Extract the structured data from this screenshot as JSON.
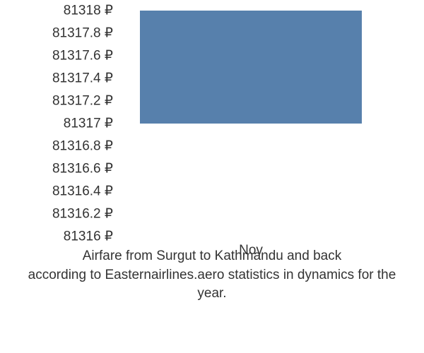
{
  "chart": {
    "type": "bar",
    "ylim": [
      81316,
      81318
    ],
    "yticks": [
      {
        "value": 81318,
        "label": "81318 ₽"
      },
      {
        "value": 81317.8,
        "label": "81317.8 ₽"
      },
      {
        "value": 81317.6,
        "label": "81317.6 ₽"
      },
      {
        "value": 81317.4,
        "label": "81317.4 ₽"
      },
      {
        "value": 81317.2,
        "label": "81317.2 ₽"
      },
      {
        "value": 81317,
        "label": "81317 ₽"
      },
      {
        "value": 81316.8,
        "label": "81316.8 ₽"
      },
      {
        "value": 81316.6,
        "label": "81316.6 ₽"
      },
      {
        "value": 81316.4,
        "label": "81316.4 ₽"
      },
      {
        "value": 81316.2,
        "label": "81316.2 ₽"
      },
      {
        "value": 81316,
        "label": "81316 ₽"
      }
    ],
    "xticks": [
      {
        "label": "Nov",
        "position": 0.5
      }
    ],
    "bars": [
      {
        "category": "Nov",
        "low": 81317,
        "high": 81318,
        "color": "#5780ac",
        "x_center": 0.5,
        "width": 0.85
      }
    ],
    "caption_line1": "Airfare from Surgut to Kathmandu and back",
    "caption_line2": "according to Easternairlines.aero statistics in dynamics for the year.",
    "text_color": "#333333",
    "background_color": "#ffffff"
  }
}
